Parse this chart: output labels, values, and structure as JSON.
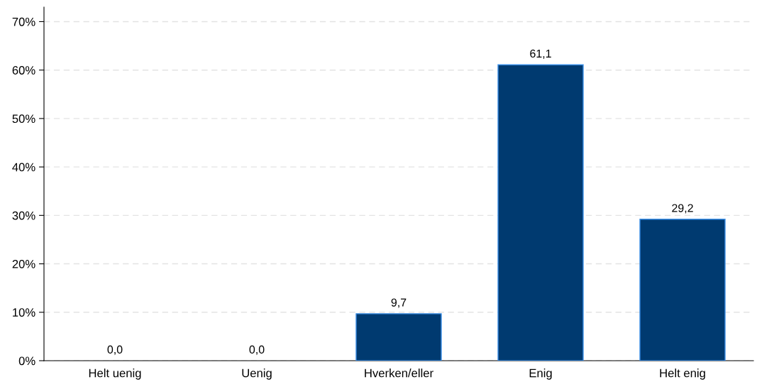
{
  "chart_data": {
    "type": "bar",
    "categories": [
      "Helt uenig",
      "Uenig",
      "Hverken/eller",
      "Enig",
      "Helt enig"
    ],
    "values": [
      0.0,
      0.0,
      9.7,
      61.1,
      29.2
    ],
    "value_labels": [
      "0,0",
      "0,0",
      "9,7",
      "61,1",
      "29,2"
    ],
    "color": "#003a70",
    "ylim": [
      0,
      73
    ],
    "yticks": [
      {
        "value": 0,
        "label": "0%"
      },
      {
        "value": 10,
        "label": "10%"
      },
      {
        "value": 20,
        "label": "20%"
      },
      {
        "value": 30,
        "label": "30%"
      },
      {
        "value": 40,
        "label": "40%"
      },
      {
        "value": 50,
        "label": "50%"
      },
      {
        "value": 60,
        "label": "60%"
      },
      {
        "value": 70,
        "label": "70%"
      }
    ],
    "grid": "y"
  }
}
